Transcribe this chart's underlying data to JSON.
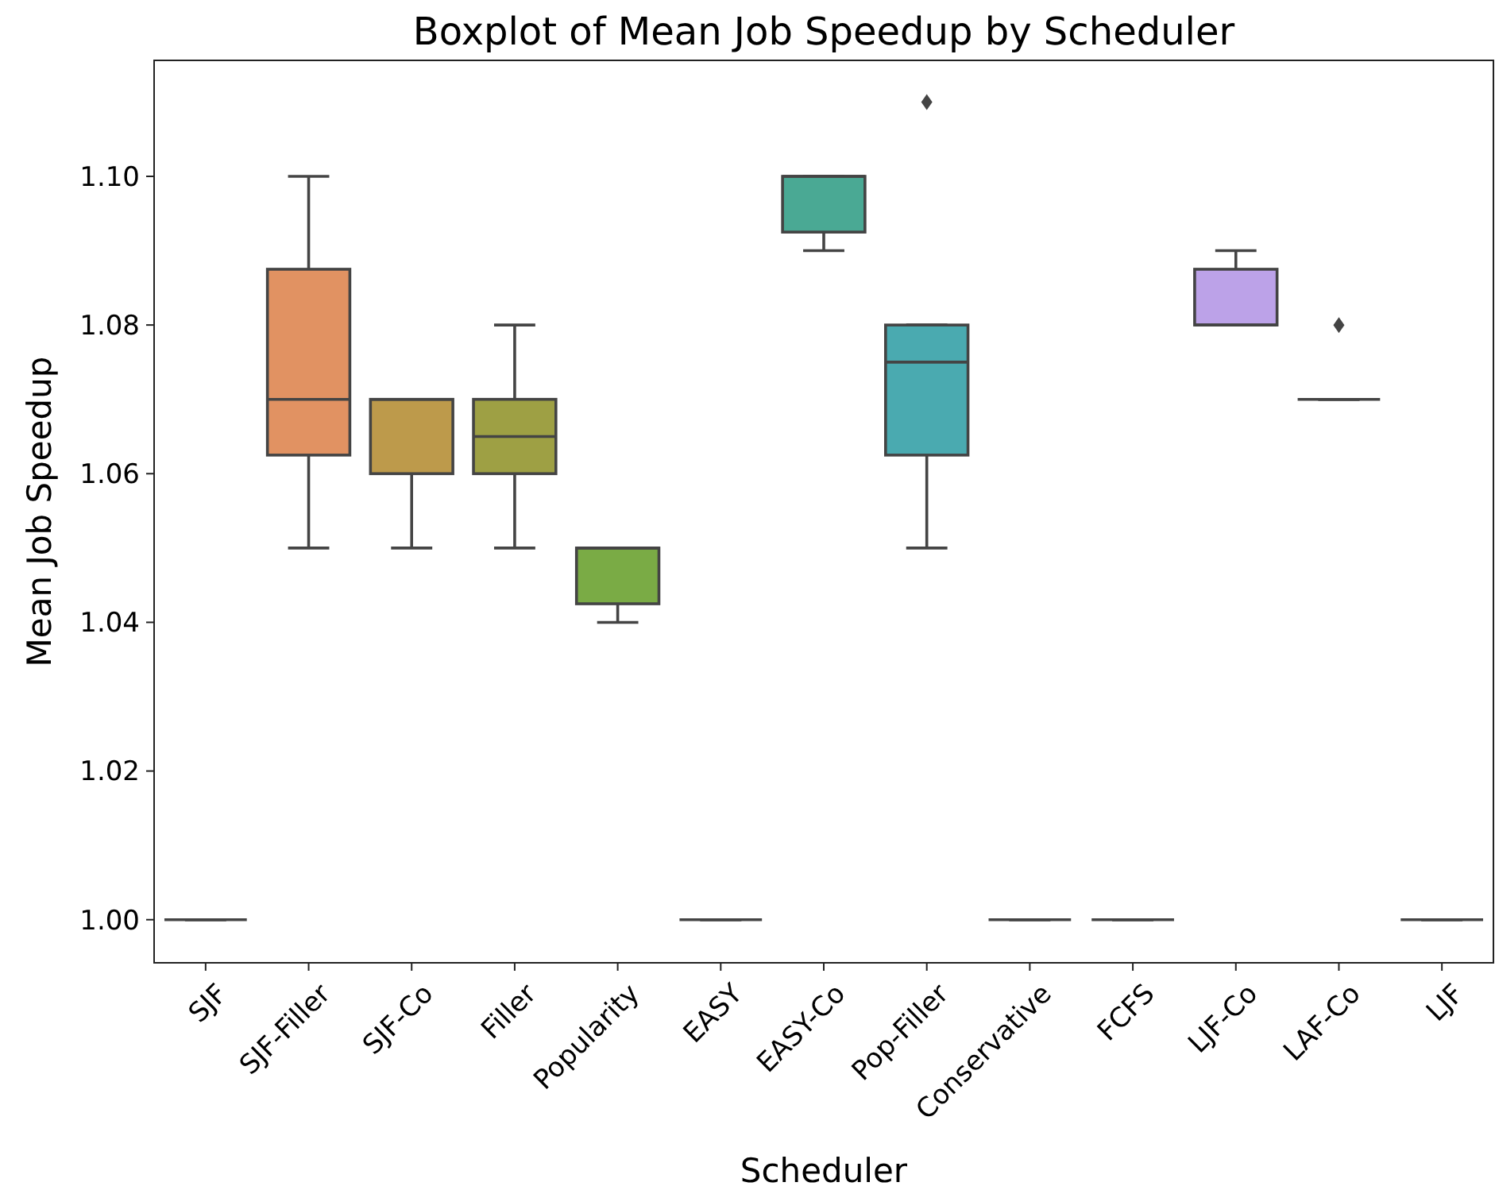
{
  "chart_data": {
    "type": "box",
    "title": "Boxplot of Mean Job Speedup by Scheduler",
    "xlabel": "Scheduler",
    "ylabel": "Mean Job Speedup",
    "categories": [
      "SJF",
      "SJF-Filler",
      "SJF-Co",
      "Filler",
      "Popularity",
      "EASY",
      "EASY-Co",
      "Pop-Filler",
      "Conservative",
      "FCFS",
      "LJF-Co",
      "LAF-Co",
      "LJF"
    ],
    "colors": [
      null,
      "#e19262",
      "#bd9a4b",
      "#9ea044",
      "#7aab45",
      null,
      "#4aa994",
      "#4aaab0",
      null,
      null,
      "#bca2e8",
      null,
      null
    ],
    "boxes": [
      {
        "low": 1.0,
        "q1": 1.0,
        "median": 1.0,
        "q3": 1.0,
        "high": 1.0
      },
      {
        "low": 1.05,
        "q1": 1.0625,
        "median": 1.07,
        "q3": 1.0875,
        "high": 1.1
      },
      {
        "low": 1.05,
        "q1": 1.06,
        "median": 1.07,
        "q3": 1.07,
        "high": 1.07
      },
      {
        "low": 1.05,
        "q1": 1.06,
        "median": 1.065,
        "q3": 1.07,
        "high": 1.08
      },
      {
        "low": 1.04,
        "q1": 1.0425,
        "median": 1.05,
        "q3": 1.05,
        "high": 1.05
      },
      {
        "low": 1.0,
        "q1": 1.0,
        "median": 1.0,
        "q3": 1.0,
        "high": 1.0
      },
      {
        "low": 1.09,
        "q1": 1.0925,
        "median": 1.1,
        "q3": 1.1,
        "high": 1.1
      },
      {
        "low": 1.05,
        "q1": 1.0625,
        "median": 1.075,
        "q3": 1.08,
        "high": 1.08,
        "outliers": [
          1.11
        ]
      },
      {
        "low": 1.0,
        "q1": 1.0,
        "median": 1.0,
        "q3": 1.0,
        "high": 1.0
      },
      {
        "low": 1.0,
        "q1": 1.0,
        "median": 1.0,
        "q3": 1.0,
        "high": 1.0
      },
      {
        "low": 1.08,
        "q1": 1.08,
        "median": 1.08,
        "q3": 1.0875,
        "high": 1.09
      },
      {
        "low": 1.07,
        "q1": 1.07,
        "median": 1.07,
        "q3": 1.07,
        "high": 1.07,
        "outliers": [
          1.08
        ]
      },
      {
        "low": 1.0,
        "q1": 1.0,
        "median": 1.0,
        "q3": 1.0,
        "high": 1.0
      }
    ],
    "ylim": [
      0.9942,
      1.1156
    ],
    "yticks": [
      {
        "value": 1.0,
        "label": "1.00"
      },
      {
        "value": 1.02,
        "label": "1.02"
      },
      {
        "value": 1.04,
        "label": "1.04"
      },
      {
        "value": 1.06,
        "label": "1.06"
      },
      {
        "value": 1.08,
        "label": "1.08"
      },
      {
        "value": 1.1,
        "label": "1.10"
      }
    ],
    "grid": false
  }
}
